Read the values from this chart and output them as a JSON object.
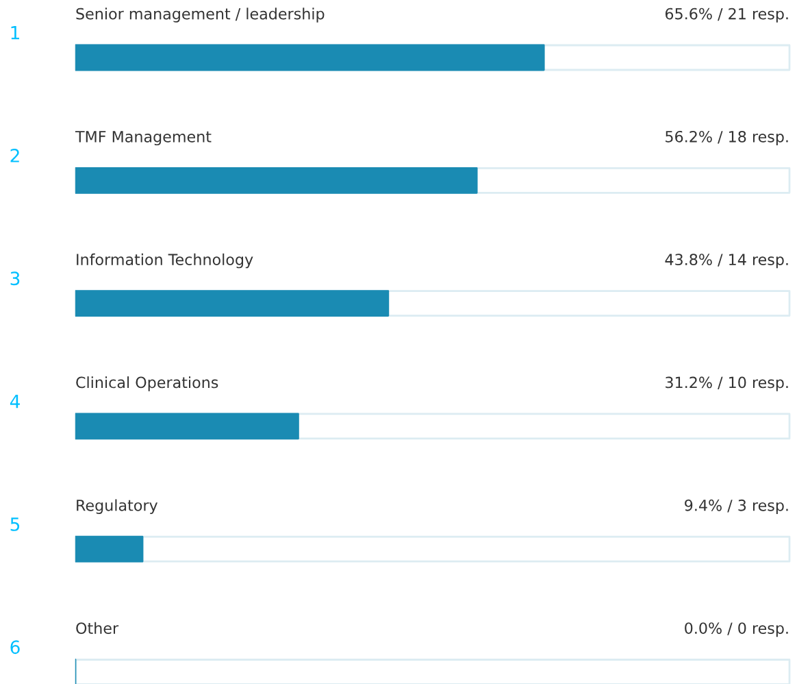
{
  "chart_data": {
    "type": "bar",
    "orientation": "horizontal",
    "categories": [
      "Senior management / leadership",
      "TMF Management",
      "Information Technology",
      "Clinical Operations",
      "Regulatory",
      "Other"
    ],
    "values": [
      65.6,
      56.2,
      43.8,
      31.2,
      9.4,
      0.0
    ],
    "value_labels": [
      "65.6% / 21 resp.",
      "56.2% / 18 resp.",
      "43.8% / 14 resp.",
      "31.2% / 10 resp.",
      "9.4% / 3 resp.",
      "0.0% / 0 resp."
    ],
    "annotations": [
      "1",
      "2",
      "3",
      "4",
      "5",
      "6"
    ],
    "color": "#1a8bb3",
    "xlim": [
      0,
      100
    ]
  }
}
